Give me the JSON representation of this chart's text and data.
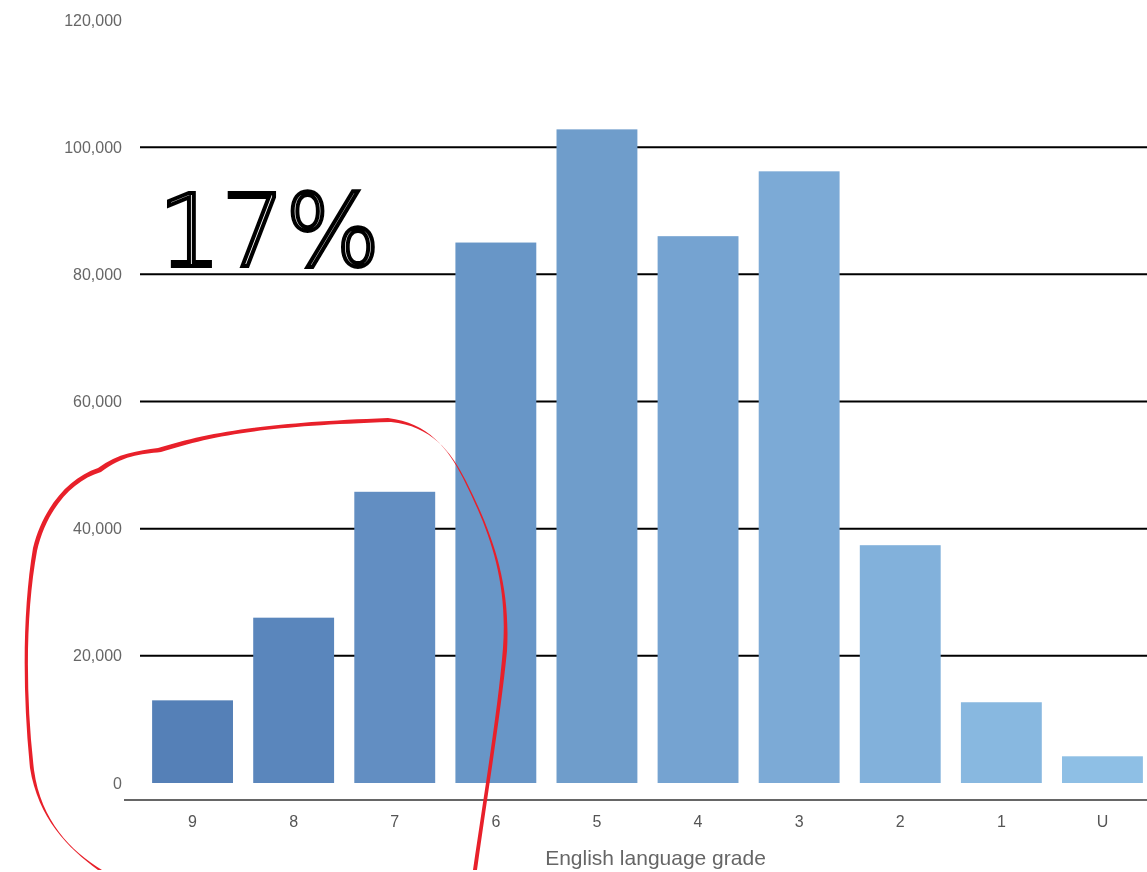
{
  "chart_data": {
    "type": "bar",
    "xlabel": "English language grade",
    "categories": [
      "9",
      "8",
      "7",
      "6",
      "5",
      "4",
      "3",
      "2",
      "1",
      "U"
    ],
    "values": [
      13000,
      26000,
      45800,
      85000,
      102800,
      86000,
      96200,
      37400,
      12700,
      4200
    ],
    "colors": [
      "#5580b7",
      "#5a86bc",
      "#628ec2",
      "#6896c7",
      "#6f9dcb",
      "#75a3d1",
      "#7caad6",
      "#82b1db",
      "#88b8e0",
      "#8ebfe5"
    ],
    "ylim": [
      0,
      120000
    ],
    "yticks": [
      {
        "value": 0,
        "label": "0"
      },
      {
        "value": 20000,
        "label": "20,000"
      },
      {
        "value": 40000,
        "label": "40,000"
      },
      {
        "value": 60000,
        "label": "60,000"
      },
      {
        "value": 80000,
        "label": "80,000"
      },
      {
        "value": 100000,
        "label": "100,000"
      },
      {
        "value": 120000,
        "label": "120,000"
      }
    ],
    "grid": "y",
    "annotations": [
      "17%"
    ]
  }
}
